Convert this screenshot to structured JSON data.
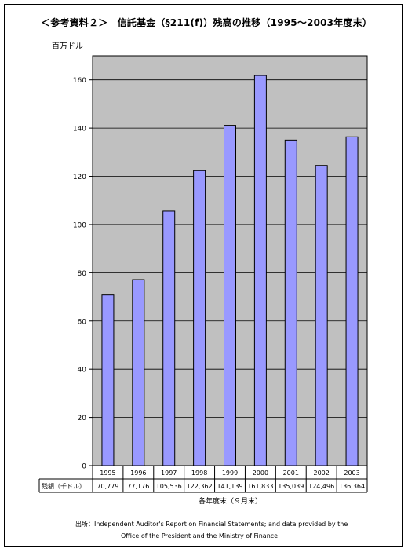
{
  "title": "＜参考資料２＞　信託基金（§211(f)）残高の推移（1995～2003年度末）",
  "source_line1": "出所：Independent Auditor's Report on Financial Statements; and data provided by the",
  "source_line2": "Office of the President and the Ministry of Finance.",
  "chart_data": {
    "type": "bar",
    "title": "＜参考資料２＞　信託基金（§211(f)）残高の推移（1995～2003年度末）",
    "ylabel": "百万ドル",
    "xlabel": "各年度末（９月末）",
    "ylim": [
      0,
      170
    ],
    "yticks": [
      0,
      20,
      40,
      60,
      80,
      100,
      120,
      140,
      160
    ],
    "grid": true,
    "bar_color": "#9999ff",
    "plot_bg": "#c0c0c0",
    "categories": [
      "1995",
      "1996",
      "1997",
      "1998",
      "1999",
      "2000",
      "2001",
      "2002",
      "2003"
    ],
    "series": [
      {
        "name": "残額（千ドル）",
        "values": [
          70.779,
          77.176,
          105.536,
          122.362,
          141.139,
          161.833,
          135.039,
          124.496,
          136.364
        ],
        "labels": [
          "70,779",
          "77,176",
          "105,536",
          "122,362",
          "141,139",
          "161,833",
          "135,039",
          "124,496",
          "136,364"
        ]
      }
    ]
  }
}
